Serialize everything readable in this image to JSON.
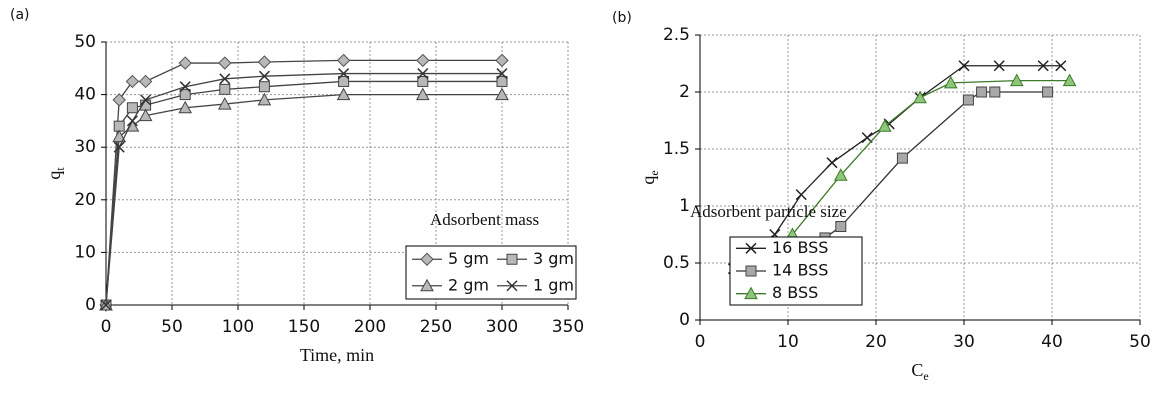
{
  "chart_data": [
    {
      "type": "line",
      "panel": "(a)",
      "xlabel": "Time, min",
      "ylabel": "q",
      "ylabel_sub": "t",
      "legend_title": "Adsorbent mass",
      "xlim": [
        0,
        350
      ],
      "xticks": [
        0,
        50,
        100,
        150,
        200,
        250,
        300,
        350
      ],
      "ylim": [
        0,
        50
      ],
      "yticks": [
        0,
        10,
        20,
        30,
        40,
        50
      ],
      "grid": true,
      "series": [
        {
          "name": "5 gm",
          "color": "#444444",
          "marker": "diamond",
          "marker_color": "#b8b8b8",
          "x": [
            0,
            10,
            20,
            30,
            60,
            90,
            120,
            180,
            240,
            300
          ],
          "values": [
            0,
            39,
            42.5,
            42.5,
            46,
            46,
            46.2,
            46.5,
            46.5,
            46.5
          ]
        },
        {
          "name": "3 gm",
          "color": "#444444",
          "marker": "square",
          "marker_color": "#b8b8b8",
          "x": [
            0,
            10,
            20,
            30,
            60,
            90,
            120,
            180,
            240,
            300
          ],
          "values": [
            0,
            34,
            37.5,
            38,
            40,
            41,
            41.5,
            42.5,
            42.5,
            42.5
          ]
        },
        {
          "name": "2 gm",
          "color": "#444444",
          "marker": "triangle",
          "marker_color": "#b8b8b8",
          "x": [
            0,
            10,
            20,
            30,
            60,
            90,
            120,
            180,
            240,
            300
          ],
          "values": [
            0,
            32,
            34,
            36,
            37.5,
            38.2,
            39,
            40,
            40,
            40
          ]
        },
        {
          "name": "1 gm",
          "color": "#444444",
          "marker": "x",
          "marker_color": "#333333",
          "x": [
            0,
            10,
            20,
            30,
            60,
            90,
            120,
            180,
            240,
            300
          ],
          "values": [
            0,
            30,
            35,
            39,
            41.5,
            43,
            43.5,
            44,
            44,
            44
          ]
        }
      ]
    },
    {
      "type": "line",
      "panel": "(b)",
      "xlabel": "C",
      "xlabel_sub": "e",
      "ylabel": "q",
      "ylabel_sub": "e",
      "legend_title": "Adsorbent particle size",
      "xlim": [
        0,
        50
      ],
      "xticks": [
        0,
        10,
        20,
        30,
        40,
        50
      ],
      "ylim": [
        0,
        2.5
      ],
      "yticks": [
        0,
        0.5,
        1,
        1.5,
        2,
        2.5
      ],
      "grid": true,
      "series": [
        {
          "name": "16 BSS",
          "color": "#222222",
          "marker": "x",
          "marker_color": "#222222",
          "x": [
            3.8,
            5,
            8.5,
            11.5,
            15,
            19,
            21.5,
            25,
            30,
            34,
            39,
            41
          ],
          "values": [
            0.45,
            0.57,
            0.75,
            1.1,
            1.38,
            1.6,
            1.72,
            1.95,
            2.23,
            2.23,
            2.23,
            2.23
          ]
        },
        {
          "name": "14 BSS",
          "color": "#333333",
          "marker": "square",
          "marker_color": "#a8a8a8",
          "x": [
            7.5,
            12,
            13,
            14.2,
            16,
            23,
            30.5,
            32,
            33.5,
            39.5
          ],
          "values": [
            0.27,
            0.53,
            0.65,
            0.72,
            0.82,
            1.42,
            1.93,
            2,
            2,
            2
          ]
        },
        {
          "name": "8 BSS",
          "color": "#3d7a2a",
          "marker": "triangle",
          "marker_color": "#8fc77a",
          "x": [
            4.2,
            7,
            8.5,
            10.5,
            16,
            21,
            25,
            28.5,
            36,
            42
          ],
          "values": [
            0.25,
            0.45,
            0.6,
            0.75,
            1.27,
            1.7,
            1.95,
            2.08,
            2.1,
            2.1
          ]
        }
      ]
    }
  ]
}
